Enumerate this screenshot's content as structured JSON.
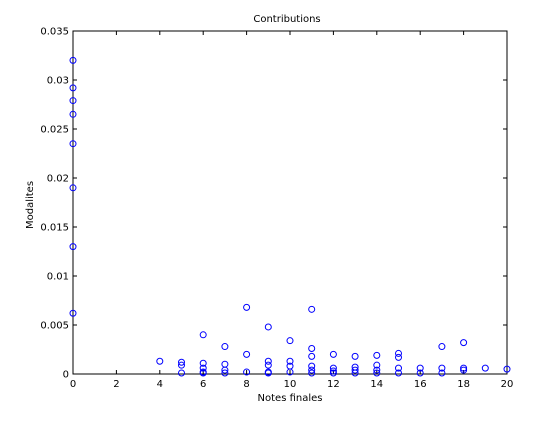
{
  "chart_data": {
    "type": "scatter",
    "title": "Contributions",
    "xlabel": "Notes finales",
    "ylabel": "Modalites",
    "xlim": [
      0,
      20
    ],
    "ylim": [
      0,
      0.035
    ],
    "xticks": [
      0,
      2,
      4,
      6,
      8,
      10,
      12,
      14,
      16,
      18,
      20
    ],
    "xtick_labels": [
      "0",
      "2",
      "4",
      "6",
      "8",
      "10",
      "12",
      "14",
      "16",
      "18",
      "20"
    ],
    "yticks": [
      0,
      0.005,
      0.01,
      0.015,
      0.02,
      0.025,
      0.03,
      0.035
    ],
    "ytick_labels": [
      "0",
      "0.005",
      "0.01",
      "0.015",
      "0.02",
      "0.025",
      "0.03",
      "0.035"
    ],
    "grid": false,
    "marker": "circle-open",
    "color": "#0000ff",
    "series": [
      {
        "x": [
          0,
          0,
          0,
          0,
          0,
          0,
          0,
          0,
          4,
          5,
          5,
          5,
          6,
          6,
          6,
          6,
          6,
          7,
          7,
          7,
          7,
          8,
          8,
          8,
          9,
          9,
          9,
          9,
          9,
          10,
          10,
          10,
          10,
          11,
          11,
          11,
          11,
          11,
          11,
          12,
          12,
          12,
          12,
          13,
          13,
          13,
          13,
          14,
          14,
          14,
          14,
          15,
          15,
          15,
          15,
          16,
          16,
          17,
          17,
          17,
          18,
          18,
          18,
          19,
          20
        ],
        "y": [
          0.032,
          0.0292,
          0.0279,
          0.0265,
          0.0235,
          0.019,
          0.013,
          0.0062,
          0.0013,
          0.0012,
          0.0009,
          0.0001,
          0.004,
          0.0011,
          0.0006,
          0.0002,
          0.0001,
          0.0028,
          0.001,
          0.0004,
          0.0001,
          0.0068,
          0.002,
          0.0002,
          0.0048,
          0.0013,
          0.0009,
          0.0002,
          0.0001,
          0.0034,
          0.0013,
          0.0008,
          0.0002,
          0.0066,
          0.0026,
          0.0018,
          0.0008,
          0.0004,
          0.0001,
          0.002,
          0.0006,
          0.0003,
          0.0001,
          0.0018,
          0.0007,
          0.0004,
          0.0001,
          0.0019,
          0.0009,
          0.0004,
          0.0001,
          0.0021,
          0.0017,
          0.0006,
          0.0001,
          0.0006,
          0.0001,
          0.0028,
          0.0006,
          0.0001,
          0.0032,
          0.0006,
          0.0004,
          0.0006,
          0.0005
        ]
      }
    ]
  }
}
